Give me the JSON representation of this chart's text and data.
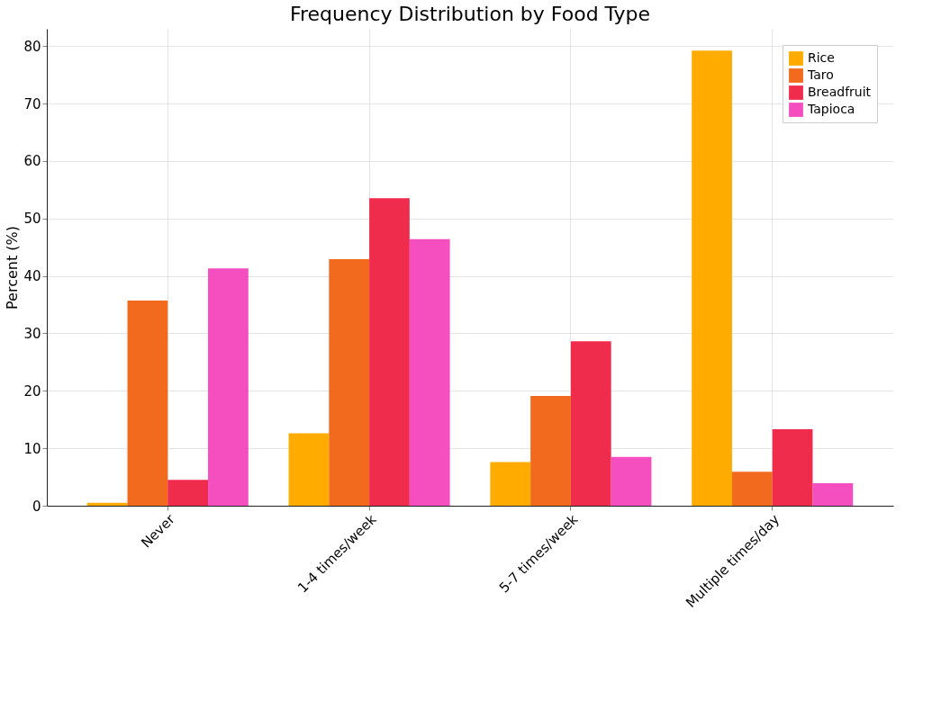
{
  "chart_data": {
    "type": "bar",
    "title": "Frequency Distribution by Food Type",
    "ylabel": "Percent (%)",
    "categories": [
      "Never",
      "1-4 times/week",
      "5-7 times/week",
      "Multiple times/day"
    ],
    "series": [
      {
        "name": "Rice",
        "color": "#ffab00",
        "values": [
          0.5,
          12.6,
          7.6,
          79.2
        ]
      },
      {
        "name": "Taro",
        "color": "#f26a1e",
        "values": [
          35.7,
          42.9,
          19.1,
          5.9
        ]
      },
      {
        "name": "Breadfruit",
        "color": "#f02c4c",
        "values": [
          4.5,
          53.5,
          28.6,
          13.3
        ]
      },
      {
        "name": "Tapioca",
        "color": "#f54fbf",
        "values": [
          41.3,
          46.4,
          8.5,
          3.9
        ]
      }
    ],
    "ylim": [
      0,
      83
    ],
    "yticks": [
      0,
      10,
      20,
      30,
      40,
      50,
      60,
      70,
      80
    ],
    "grid": true,
    "legend": "top right"
  }
}
